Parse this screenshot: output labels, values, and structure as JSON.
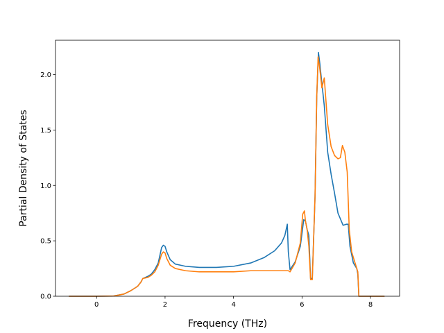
{
  "chart_data": {
    "type": "line",
    "title": "",
    "xlabel": "Frequency (THz)",
    "ylabel": "Partial Density of States",
    "xlim": [
      -1.2,
      8.85
    ],
    "ylim": [
      0.0,
      2.31
    ],
    "xticks": [
      0,
      2,
      4,
      6,
      8
    ],
    "xtick_labels": [
      "0",
      "2",
      "4",
      "6",
      "8"
    ],
    "yticks": [
      0.0,
      0.5,
      1.0,
      1.5,
      2.0
    ],
    "ytick_labels": [
      "0.0",
      "0.5",
      "1.0",
      "1.5",
      "2.0"
    ],
    "grid": false,
    "legend": "none",
    "series": [
      {
        "color": "#1f77b4",
        "points": [
          [
            -0.8,
            0.0
          ],
          [
            0.0,
            0.0
          ],
          [
            0.5,
            0.002
          ],
          [
            0.8,
            0.02
          ],
          [
            1.0,
            0.05
          ],
          [
            1.2,
            0.09
          ],
          [
            1.3,
            0.13
          ],
          [
            1.35,
            0.16
          ],
          [
            1.5,
            0.18
          ],
          [
            1.6,
            0.2
          ],
          [
            1.7,
            0.24
          ],
          [
            1.8,
            0.3
          ],
          [
            1.9,
            0.44
          ],
          [
            1.95,
            0.46
          ],
          [
            2.0,
            0.45
          ],
          [
            2.05,
            0.4
          ],
          [
            2.15,
            0.33
          ],
          [
            2.3,
            0.29
          ],
          [
            2.6,
            0.27
          ],
          [
            3.0,
            0.26
          ],
          [
            3.5,
            0.26
          ],
          [
            4.0,
            0.27
          ],
          [
            4.5,
            0.3
          ],
          [
            4.9,
            0.35
          ],
          [
            5.2,
            0.41
          ],
          [
            5.4,
            0.48
          ],
          [
            5.5,
            0.55
          ],
          [
            5.57,
            0.65
          ],
          [
            5.6,
            0.4
          ],
          [
            5.65,
            0.24
          ],
          [
            5.8,
            0.31
          ],
          [
            5.95,
            0.45
          ],
          [
            6.05,
            0.69
          ],
          [
            6.1,
            0.68
          ],
          [
            6.15,
            0.6
          ],
          [
            6.2,
            0.55
          ],
          [
            6.25,
            0.16
          ],
          [
            6.3,
            0.16
          ],
          [
            6.38,
            0.9
          ],
          [
            6.43,
            1.8
          ],
          [
            6.48,
            2.2
          ],
          [
            6.52,
            2.1
          ],
          [
            6.57,
            1.95
          ],
          [
            6.65,
            1.72
          ],
          [
            6.75,
            1.3
          ],
          [
            6.85,
            1.1
          ],
          [
            6.95,
            0.93
          ],
          [
            7.05,
            0.75
          ],
          [
            7.2,
            0.64
          ],
          [
            7.3,
            0.65
          ],
          [
            7.35,
            0.65
          ],
          [
            7.4,
            0.45
          ],
          [
            7.5,
            0.3
          ],
          [
            7.6,
            0.25
          ],
          [
            7.63,
            0.2
          ],
          [
            7.66,
            0.0
          ],
          [
            8.4,
            0.0
          ]
        ]
      },
      {
        "color": "#ff7f0e",
        "points": [
          [
            -0.8,
            0.0
          ],
          [
            0.0,
            0.0
          ],
          [
            0.5,
            0.002
          ],
          [
            0.8,
            0.02
          ],
          [
            1.0,
            0.05
          ],
          [
            1.2,
            0.09
          ],
          [
            1.3,
            0.13
          ],
          [
            1.35,
            0.16
          ],
          [
            1.5,
            0.17
          ],
          [
            1.6,
            0.19
          ],
          [
            1.7,
            0.22
          ],
          [
            1.8,
            0.28
          ],
          [
            1.9,
            0.38
          ],
          [
            1.95,
            0.4
          ],
          [
            2.0,
            0.39
          ],
          [
            2.05,
            0.34
          ],
          [
            2.15,
            0.28
          ],
          [
            2.3,
            0.25
          ],
          [
            2.6,
            0.23
          ],
          [
            3.0,
            0.22
          ],
          [
            3.5,
            0.22
          ],
          [
            4.0,
            0.22
          ],
          [
            4.5,
            0.23
          ],
          [
            5.0,
            0.23
          ],
          [
            5.4,
            0.23
          ],
          [
            5.6,
            0.23
          ],
          [
            5.65,
            0.22
          ],
          [
            5.8,
            0.3
          ],
          [
            5.95,
            0.48
          ],
          [
            6.02,
            0.74
          ],
          [
            6.07,
            0.77
          ],
          [
            6.1,
            0.68
          ],
          [
            6.15,
            0.6
          ],
          [
            6.2,
            0.45
          ],
          [
            6.25,
            0.15
          ],
          [
            6.3,
            0.15
          ],
          [
            6.38,
            0.9
          ],
          [
            6.43,
            1.8
          ],
          [
            6.47,
            2.16
          ],
          [
            6.52,
            2.05
          ],
          [
            6.58,
            1.88
          ],
          [
            6.65,
            1.97
          ],
          [
            6.75,
            1.55
          ],
          [
            6.85,
            1.35
          ],
          [
            6.95,
            1.27
          ],
          [
            7.05,
            1.24
          ],
          [
            7.12,
            1.25
          ],
          [
            7.18,
            1.36
          ],
          [
            7.25,
            1.3
          ],
          [
            7.32,
            1.12
          ],
          [
            7.38,
            0.6
          ],
          [
            7.45,
            0.4
          ],
          [
            7.55,
            0.3
          ],
          [
            7.63,
            0.22
          ],
          [
            7.66,
            0.0
          ],
          [
            8.4,
            0.0
          ]
        ]
      }
    ]
  }
}
